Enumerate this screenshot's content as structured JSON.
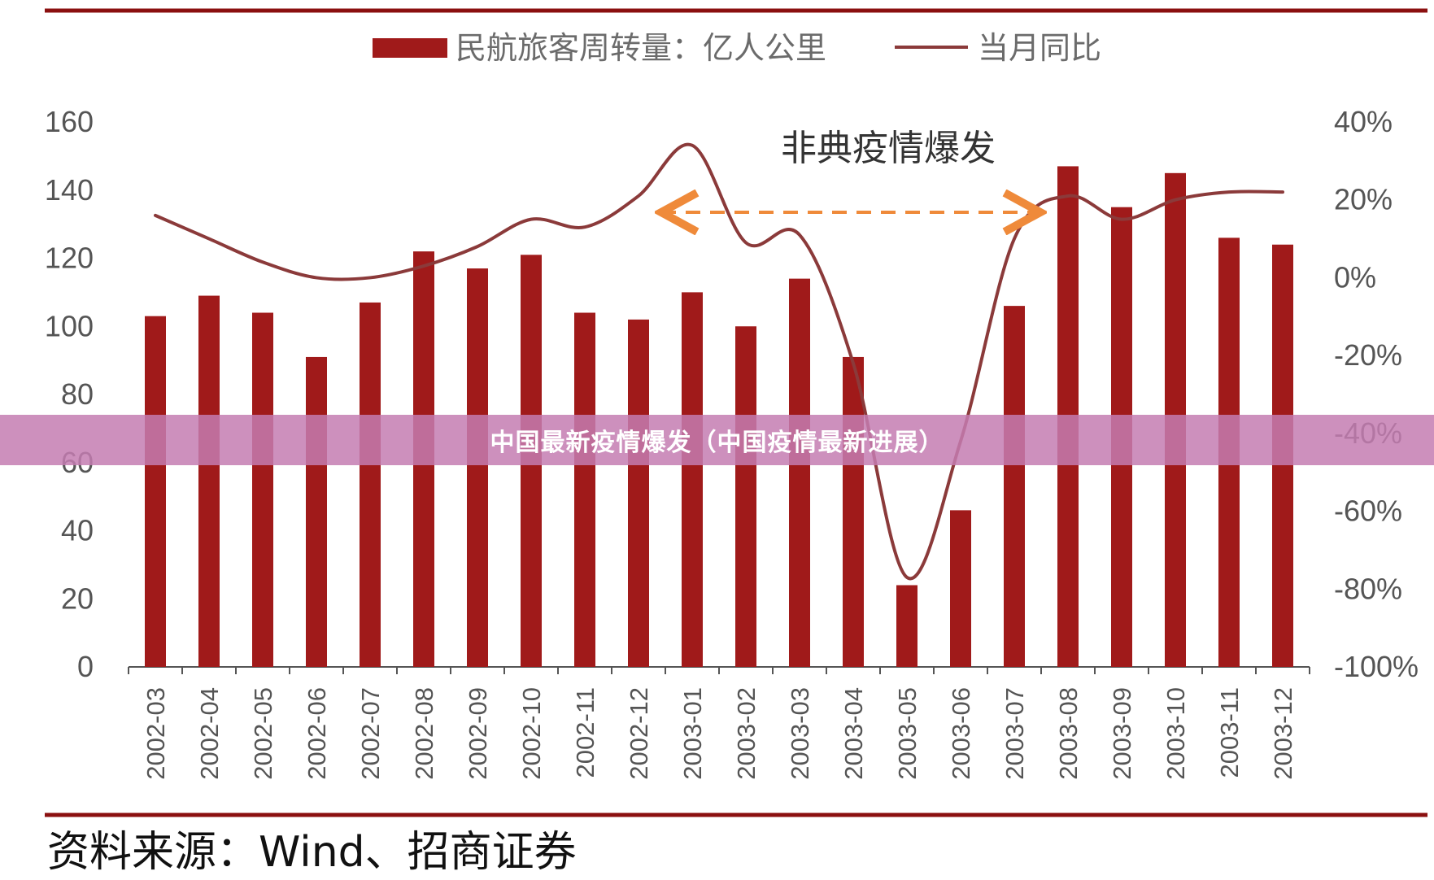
{
  "banner": {
    "title": "中国最新疫情爆发（中国疫情最新进展）"
  },
  "source": "资料来源：Wind、招商证券",
  "colors": {
    "bar": "#a01a1a",
    "line": "#8b3a3a",
    "arrow": "#ef8a3a",
    "rule": "#8b1010"
  },
  "chart_data": {
    "type": "bar",
    "categories": [
      "2002-03",
      "2002-04",
      "2002-05",
      "2002-06",
      "2002-07",
      "2002-08",
      "2002-09",
      "2002-10",
      "2002-11",
      "2002-12",
      "2003-01",
      "2003-02",
      "2003-03",
      "2003-04",
      "2003-05",
      "2003-06",
      "2003-07",
      "2003-08",
      "2003-09",
      "2003-10",
      "2003-11",
      "2003-12"
    ],
    "series": [
      {
        "name": "民航旅客周转量：亿人公里",
        "type": "bar",
        "axis": "left",
        "values": [
          103,
          109,
          104,
          91,
          107,
          122,
          117,
          121,
          104,
          102,
          110,
          100,
          114,
          91,
          24,
          46,
          106,
          147,
          135,
          145,
          126,
          124
        ]
      },
      {
        "name": "当月同比",
        "type": "line",
        "axis": "right",
        "unit": "%",
        "values": [
          16,
          10,
          4,
          0,
          0,
          3,
          8,
          15,
          13,
          21,
          34,
          9,
          11,
          -22,
          -77,
          -42,
          10,
          21,
          15,
          20,
          22,
          22
        ]
      }
    ],
    "yticks_left": [
      "0",
      "20",
      "40",
      "60",
      "80",
      "100",
      "120",
      "140",
      "160"
    ],
    "yticks_right": [
      "-100%",
      "-80%",
      "-60%",
      "-40%",
      "-20%",
      "0%",
      "20%",
      "40%"
    ],
    "ylim_left": [
      0,
      160
    ],
    "ylim_right": [
      -100,
      40
    ],
    "annotation": {
      "text": "非典疫情爆发",
      "from": "2003-01",
      "to": "2003-08"
    },
    "legend": "top-center",
    "grid": false
  }
}
